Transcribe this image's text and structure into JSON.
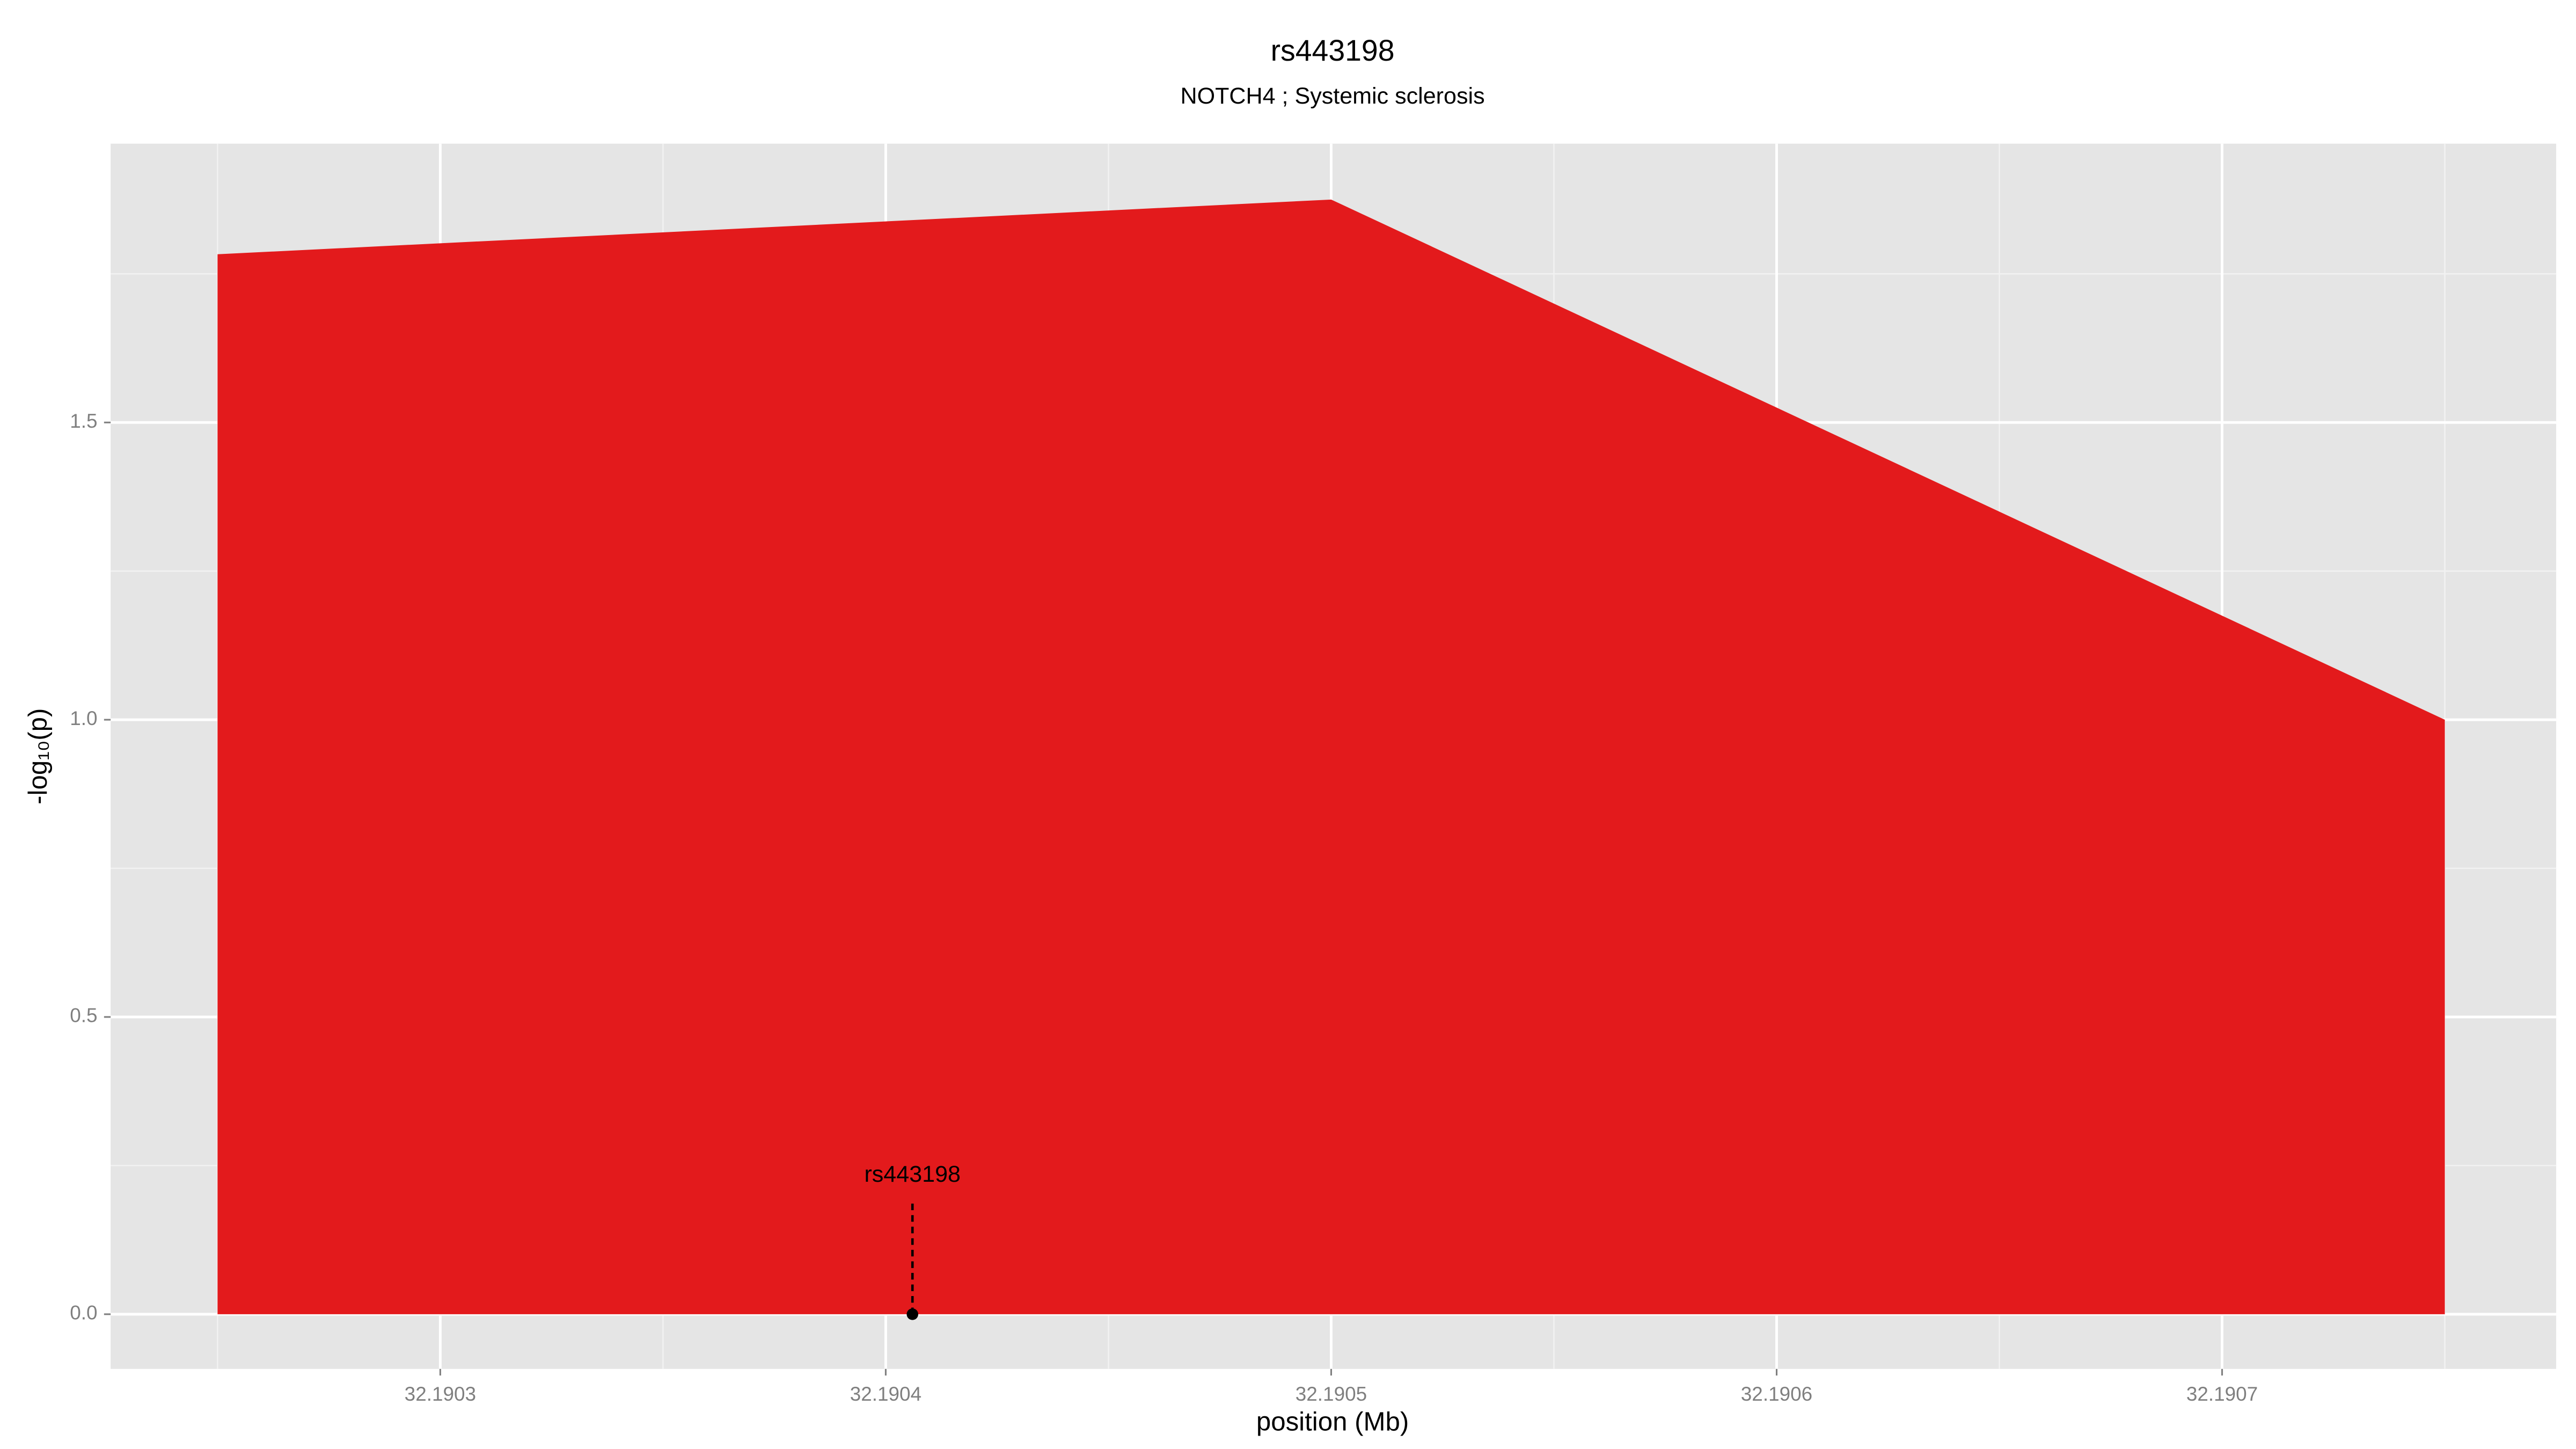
{
  "chart_data": {
    "type": "area",
    "title": "rs443198",
    "subtitle": "NOTCH4 ; Systemic sclerosis",
    "x_label": "position (Mb)",
    "y_label": "-log₁₀(p)",
    "x": [
      32.19025,
      32.1905,
      32.19075
    ],
    "values": [
      1.783,
      1.875,
      1.0
    ],
    "color": "#e31a1c",
    "xlim": [
      32.190226,
      32.190775
    ],
    "xticks": [
      32.1903,
      32.1904,
      32.1905,
      32.1906,
      32.1907
    ],
    "ylim": [
      -0.092,
      1.969
    ],
    "yticks": [
      {
        "value": 0,
        "label": "0.0"
      },
      {
        "value": 0.5,
        "label": "0.5"
      },
      {
        "value": 1,
        "label": "1.0"
      },
      {
        "value": 1.5,
        "label": "1.5"
      }
    ],
    "grid": true,
    "annotation": {
      "x": 32.190406,
      "y": 0,
      "label": "rs443198"
    }
  }
}
